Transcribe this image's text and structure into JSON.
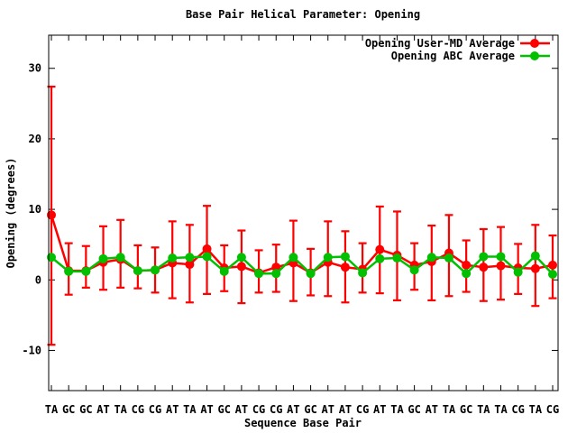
{
  "title": "Base Pair Helical Parameter: Opening",
  "x_axis": {
    "label": "Sequence Base Pair"
  },
  "y_axis": {
    "label": "Opening (degrees)"
  },
  "legend": {
    "position": "top-right-inside",
    "entries": [
      {
        "label": "Opening User-MD Average",
        "color": "#ff0000"
      },
      {
        "label": "Opening ABC Average",
        "color": "#00c000"
      }
    ]
  },
  "chart_data": {
    "type": "line",
    "title": "Base Pair Helical Parameter: Opening",
    "xlabel": "Sequence Base Pair",
    "ylabel": "Opening (degrees)",
    "categories": [
      "TA",
      "GC",
      "GC",
      "AT",
      "TA",
      "CG",
      "CG",
      "AT",
      "TA",
      "AT",
      "GC",
      "AT",
      "CG",
      "CG",
      "AT",
      "GC",
      "AT",
      "AT",
      "CG",
      "AT",
      "TA",
      "GC",
      "AT",
      "TA",
      "GC",
      "TA",
      "TA",
      "CG",
      "TA",
      "CG"
    ],
    "series": [
      {
        "name": "Opening User-MD Average",
        "color": "#ff0000",
        "marker": "circle",
        "has_error_bars": true,
        "values": [
          9.2,
          1.3,
          1.3,
          2.5,
          2.9,
          1.3,
          1.4,
          2.4,
          2.2,
          4.4,
          1.7,
          1.9,
          1.0,
          1.8,
          2.4,
          1.0,
          2.5,
          1.8,
          1.5,
          4.3,
          3.5,
          2.1,
          2.6,
          3.8,
          2.1,
          1.8,
          2.0,
          1.7,
          1.6,
          2.1
        ],
        "err_lo": [
          -9.2,
          -2.1,
          -1.1,
          -1.4,
          -1.1,
          -1.2,
          -1.8,
          -2.6,
          -3.2,
          -2.0,
          -1.6,
          -3.3,
          -1.8,
          -1.7,
          -3.0,
          -2.2,
          -2.3,
          -3.2,
          -1.8,
          -1.9,
          -2.9,
          -1.4,
          -2.9,
          -2.3,
          -1.7,
          -3.0,
          -2.8,
          -2.0,
          -3.7,
          -2.6
        ],
        "err_hi": [
          27.4,
          5.2,
          4.8,
          7.6,
          8.5,
          4.9,
          4.6,
          8.3,
          7.8,
          10.5,
          4.9,
          7.0,
          4.2,
          5.0,
          8.4,
          4.4,
          8.3,
          6.9,
          5.2,
          10.4,
          9.7,
          5.2,
          7.7,
          9.2,
          5.6,
          7.2,
          7.5,
          5.1,
          7.8,
          6.3
        ]
      },
      {
        "name": "Opening ABC Average",
        "color": "#00c000",
        "marker": "circle",
        "has_error_bars": false,
        "values": [
          3.2,
          1.2,
          1.2,
          3.0,
          3.2,
          1.3,
          1.4,
          3.1,
          3.2,
          3.3,
          1.2,
          3.2,
          0.9,
          0.9,
          3.2,
          0.9,
          3.2,
          3.3,
          1.0,
          3.0,
          3.1,
          1.4,
          3.2,
          3.1,
          0.9,
          3.3,
          3.3,
          1.1,
          3.4,
          0.8
        ]
      }
    ],
    "yticks": [
      -10,
      0,
      10,
      20,
      30
    ],
    "ylim": [
      -15.7,
      34.7
    ],
    "grid": false,
    "legend_position": "top-right-inside",
    "background": "#ffffff",
    "text_color": "#000000",
    "border_color": "#000000"
  }
}
